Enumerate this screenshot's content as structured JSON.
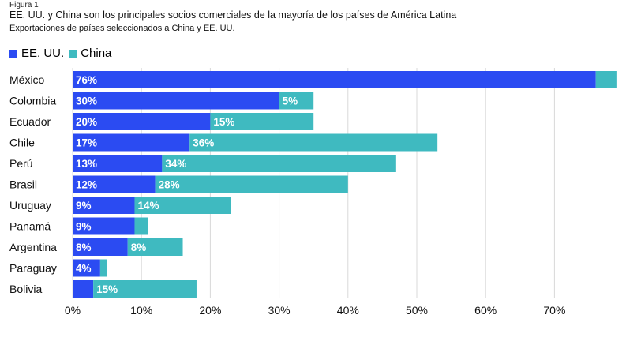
{
  "figure_label": "Figura 1",
  "chart_data": {
    "type": "bar",
    "orientation": "horizontal",
    "stacked": true,
    "title": "EE. UU. y China son los principales socios comerciales de la mayoría de los países de América Latina",
    "subtitle": "Exportaciones de países seleccionados a China y EE. UU.",
    "legend_position": "top-left",
    "grid": true,
    "xlim": [
      0,
      80
    ],
    "x_ticks": [
      "0%",
      "10%",
      "20%",
      "30%",
      "40%",
      "50%",
      "60%",
      "70%"
    ],
    "x_tick_values": [
      0,
      10,
      20,
      30,
      40,
      50,
      60,
      70
    ],
    "categories": [
      "México",
      "Colombia",
      "Ecuador",
      "Chile",
      "Perú",
      "Brasil",
      "Uruguay",
      "Panamá",
      "Argentina",
      "Paraguay",
      "Bolivia"
    ],
    "series": [
      {
        "name": "EE. UU.",
        "color": "#2b4bf2",
        "values": [
          76,
          30,
          20,
          17,
          13,
          12,
          9,
          9,
          8,
          4,
          3
        ],
        "labels": [
          "76%",
          "30%",
          "20%",
          "17%",
          "13%",
          "12%",
          "9%",
          "9%",
          "8%",
          "4%",
          ""
        ]
      },
      {
        "name": "China",
        "color": "#3fbac0",
        "values": [
          3,
          5,
          15,
          36,
          34,
          28,
          14,
          2,
          8,
          1,
          15
        ],
        "labels": [
          "",
          "5%",
          "15%",
          "36%",
          "34%",
          "28%",
          "14%",
          "",
          "8%",
          "",
          "15%"
        ]
      }
    ]
  }
}
